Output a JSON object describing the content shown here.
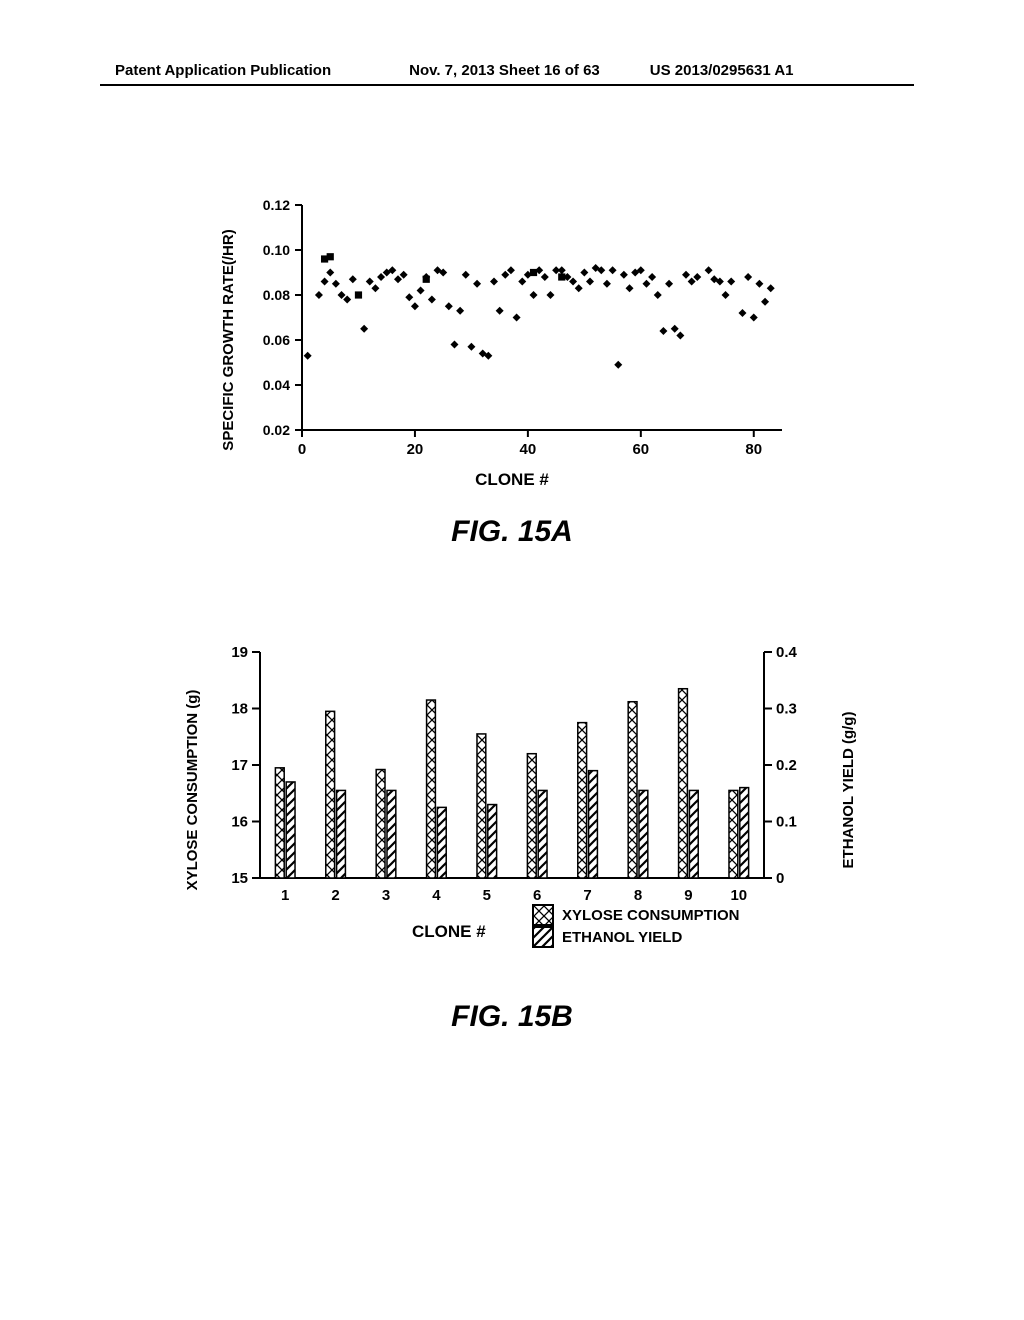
{
  "header": {
    "left": "Patent Application Publication",
    "mid": "Nov. 7, 2013  Sheet 16 of 63",
    "right": "US 2013/0295631 A1"
  },
  "figA": {
    "label": "FIG. 15A",
    "type": "scatter",
    "ylabel": "SPECIFIC GROWTH RATE(/HR)",
    "xlabel": "CLONE #",
    "label_fontsize": 15,
    "xlim": [
      0,
      85
    ],
    "ylim": [
      0.02,
      0.12
    ],
    "yticks": [
      0.02,
      0.04,
      0.06,
      0.08,
      0.1,
      0.12
    ],
    "xticks": [
      0,
      20,
      40,
      60,
      80
    ],
    "marker_size": 8,
    "marker_color": "#000000",
    "background_color": "#ffffff",
    "squares": [
      [
        4,
        0.096
      ],
      [
        5,
        0.097
      ],
      [
        10,
        0.08
      ],
      [
        22,
        0.087
      ],
      [
        41,
        0.09
      ],
      [
        46,
        0.088
      ]
    ],
    "diamonds": [
      [
        1,
        0.053
      ],
      [
        3,
        0.08
      ],
      [
        4,
        0.086
      ],
      [
        5,
        0.09
      ],
      [
        6,
        0.085
      ],
      [
        7,
        0.08
      ],
      [
        8,
        0.078
      ],
      [
        9,
        0.087
      ],
      [
        11,
        0.065
      ],
      [
        12,
        0.086
      ],
      [
        13,
        0.083
      ],
      [
        14,
        0.088
      ],
      [
        15,
        0.09
      ],
      [
        16,
        0.091
      ],
      [
        17,
        0.087
      ],
      [
        18,
        0.089
      ],
      [
        19,
        0.079
      ],
      [
        20,
        0.075
      ],
      [
        21,
        0.082
      ],
      [
        22,
        0.088
      ],
      [
        23,
        0.078
      ],
      [
        24,
        0.091
      ],
      [
        25,
        0.09
      ],
      [
        26,
        0.075
      ],
      [
        27,
        0.058
      ],
      [
        28,
        0.073
      ],
      [
        29,
        0.089
      ],
      [
        30,
        0.057
      ],
      [
        31,
        0.085
      ],
      [
        32,
        0.054
      ],
      [
        33,
        0.053
      ],
      [
        34,
        0.086
      ],
      [
        35,
        0.073
      ],
      [
        36,
        0.089
      ],
      [
        37,
        0.091
      ],
      [
        38,
        0.07
      ],
      [
        39,
        0.086
      ],
      [
        40,
        0.089
      ],
      [
        41,
        0.08
      ],
      [
        42,
        0.091
      ],
      [
        43,
        0.088
      ],
      [
        44,
        0.08
      ],
      [
        45,
        0.091
      ],
      [
        46,
        0.091
      ],
      [
        47,
        0.088
      ],
      [
        48,
        0.086
      ],
      [
        49,
        0.083
      ],
      [
        50,
        0.09
      ],
      [
        51,
        0.086
      ],
      [
        52,
        0.092
      ],
      [
        53,
        0.091
      ],
      [
        54,
        0.085
      ],
      [
        55,
        0.091
      ],
      [
        56,
        0.049
      ],
      [
        57,
        0.089
      ],
      [
        58,
        0.083
      ],
      [
        59,
        0.09
      ],
      [
        60,
        0.091
      ],
      [
        61,
        0.085
      ],
      [
        62,
        0.088
      ],
      [
        63,
        0.08
      ],
      [
        64,
        0.064
      ],
      [
        65,
        0.085
      ],
      [
        66,
        0.065
      ],
      [
        67,
        0.062
      ],
      [
        68,
        0.089
      ],
      [
        69,
        0.086
      ],
      [
        70,
        0.088
      ],
      [
        72,
        0.091
      ],
      [
        73,
        0.087
      ],
      [
        74,
        0.086
      ],
      [
        75,
        0.08
      ],
      [
        76,
        0.086
      ],
      [
        78,
        0.072
      ],
      [
        79,
        0.088
      ],
      [
        80,
        0.07
      ],
      [
        81,
        0.085
      ],
      [
        82,
        0.077
      ],
      [
        83,
        0.083
      ]
    ]
  },
  "figB": {
    "label": "FIG. 15B",
    "type": "bar_dual_axis",
    "xlabel": "CLONE #",
    "ylabel_left": "XYLOSE CONSUMPTION (g)",
    "ylabel_right": "ETHANOL YIELD (g/g)",
    "label_fontsize": 15,
    "xticks": [
      1,
      2,
      3,
      4,
      5,
      6,
      7,
      8,
      9,
      10
    ],
    "yticks_left": [
      15,
      16,
      17,
      18,
      19
    ],
    "yticks_right": [
      0,
      0.1,
      0.2,
      0.3,
      0.4
    ],
    "ylim_left": [
      15,
      19
    ],
    "ylim_right": [
      0,
      0.4
    ],
    "bar_width": 0.35,
    "series": [
      {
        "name": "XYLOSE CONSUMPTION",
        "pattern": "cross",
        "values": [
          16.95,
          17.95,
          16.92,
          18.15,
          17.55,
          17.2,
          17.75,
          18.12,
          18.35,
          16.55
        ]
      },
      {
        "name": "ETHANOL YIELD",
        "pattern": "diag",
        "values": [
          0.17,
          0.155,
          0.155,
          0.125,
          0.13,
          0.155,
          0.19,
          0.155,
          0.155,
          0.16
        ]
      }
    ],
    "legend": {
      "xylose": "XYLOSE CONSUMPTION",
      "ethanol": "ETHANOL YIELD"
    },
    "stroke_color": "#000000",
    "background_color": "#ffffff"
  }
}
